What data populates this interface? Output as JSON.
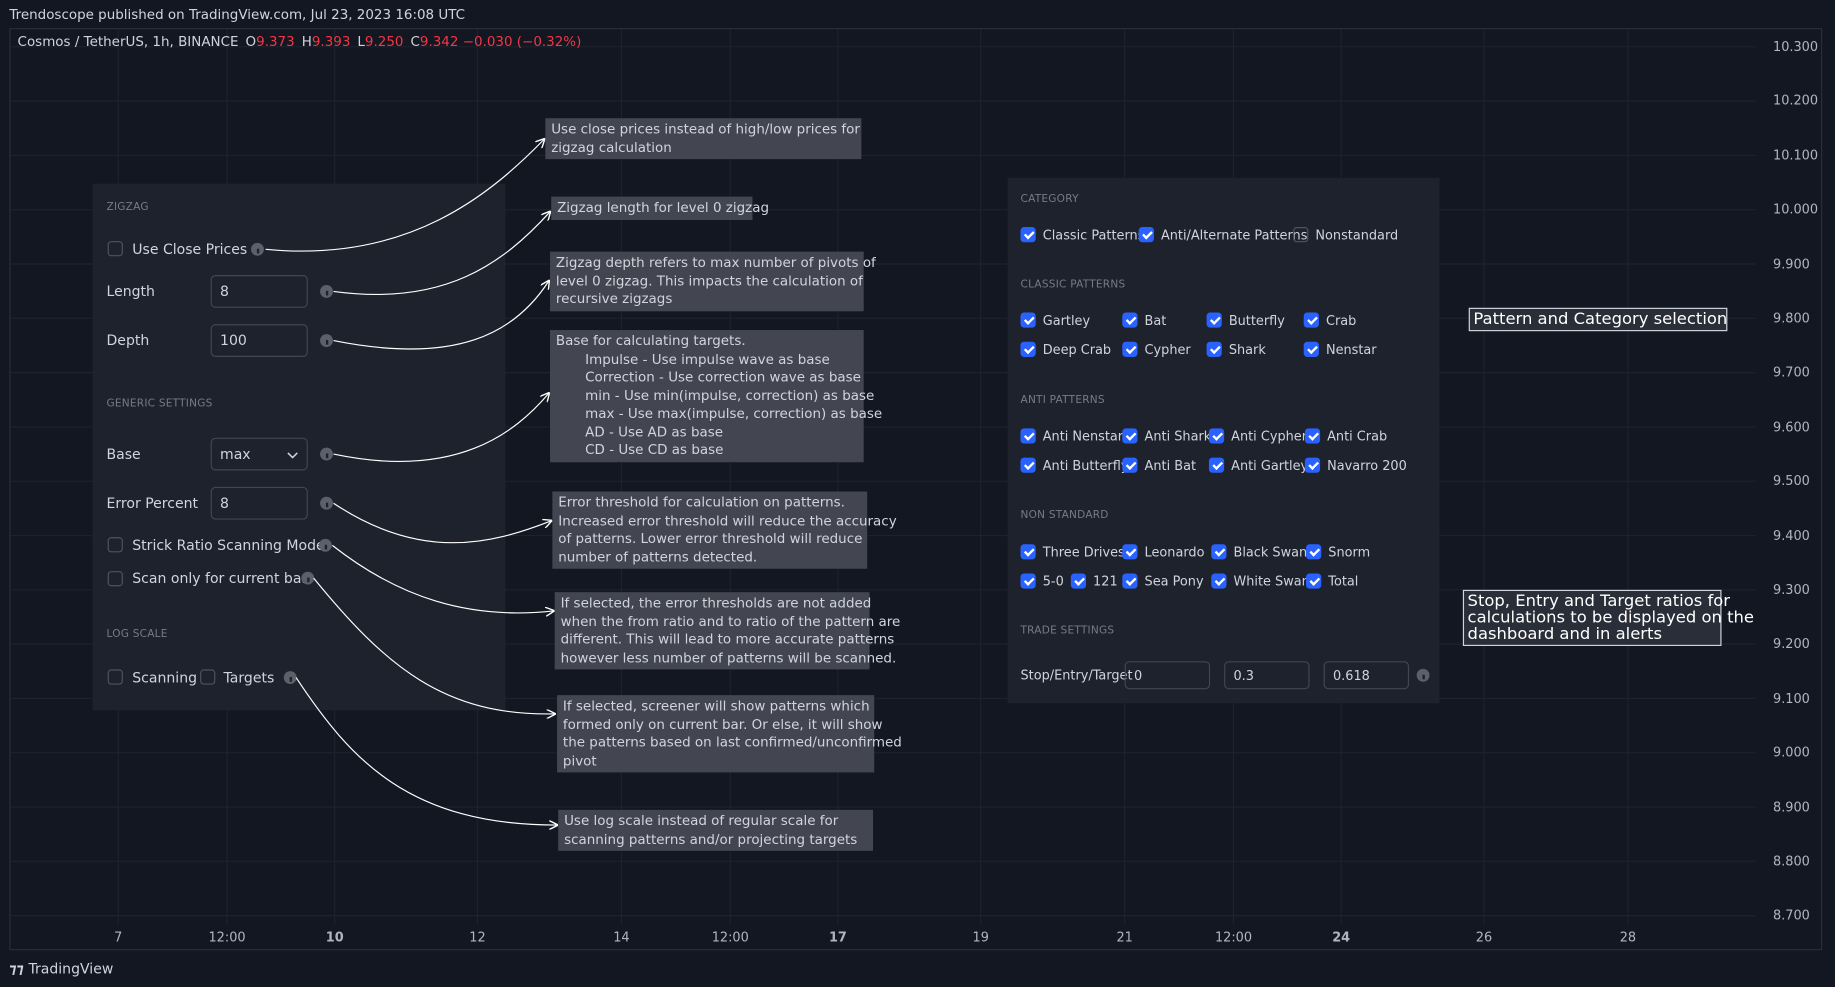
{
  "header": {
    "published": "Trendoscope published on TradingView.com, Jul 23, 2023 16:08 UTC"
  },
  "legend": {
    "symbol": "Cosmos / TetherUS, 1h, BINANCE",
    "ohlc": [
      {
        "key": "O",
        "value": "9.373"
      },
      {
        "key": "H",
        "value": "9.393"
      },
      {
        "key": "L",
        "value": "9.250"
      },
      {
        "key": "C",
        "value": "9.342"
      }
    ],
    "change": "−0.030 (−0.32%)"
  },
  "price_axis": [
    "10.300",
    "10.200",
    "10.100",
    "10.000",
    "9.900",
    "9.800",
    "9.700",
    "9.600",
    "9.500",
    "9.400",
    "9.300",
    "9.200",
    "9.100",
    "9.000",
    "8.900",
    "8.800",
    "8.700"
  ],
  "time_axis": [
    {
      "label": "7",
      "bold": false
    },
    {
      "label": "12:00",
      "bold": false
    },
    {
      "label": "10",
      "bold": true
    },
    {
      "label": "12",
      "bold": false
    },
    {
      "label": "14",
      "bold": false
    },
    {
      "label": "12:00",
      "bold": false
    },
    {
      "label": "17",
      "bold": true
    },
    {
      "label": "19",
      "bold": false
    },
    {
      "label": "21",
      "bold": false
    },
    {
      "label": "12:00",
      "bold": false
    },
    {
      "label": "24",
      "bold": true
    },
    {
      "label": "26",
      "bold": false
    },
    {
      "label": "28",
      "bold": false
    }
  ],
  "footer": {
    "brand": "TradingView"
  },
  "left_panel": {
    "zigzag": {
      "title": "ZIGZAG",
      "use_close": {
        "label": "Use Close Prices",
        "checked": false
      },
      "length": {
        "label": "Length",
        "value": "8"
      },
      "depth": {
        "label": "Depth",
        "value": "100"
      }
    },
    "generic": {
      "title": "GENERIC SETTINGS",
      "base": {
        "label": "Base",
        "value": "max"
      },
      "error": {
        "label": "Error Percent",
        "value": "8"
      },
      "strict": {
        "label": "Strick Ratio Scanning Mode",
        "checked": false
      },
      "current_bar": {
        "label": "Scan only for current bar",
        "checked": false
      }
    },
    "log_scale": {
      "title": "LOG SCALE",
      "scanning": {
        "label": "Scanning",
        "checked": false
      },
      "targets": {
        "label": "Targets",
        "checked": false
      }
    }
  },
  "tooltips": [
    {
      "lines": [
        "Use close prices instead of high/low prices for",
        "zigzag calculation"
      ]
    },
    {
      "lines": [
        "Zigzag length for level 0 zigzag"
      ]
    },
    {
      "lines": [
        "Zigzag depth refers to max number of pivots of",
        "level 0 zigzag. This impacts the calculation of",
        "recursive zigzags"
      ]
    },
    {
      "lines": [
        "Base for calculating targets.",
        "Impulse - Use impulse wave as base",
        "Correction - Use correction wave as base",
        "min - Use min(impulse, correction) as base",
        "max - Use max(impulse, correction) as base",
        "AD - Use AD as base",
        "CD - Use CD as base"
      ]
    },
    {
      "lines": [
        "Error threshold for calculation on patterns.",
        "Increased error threshold will reduce the accuracy",
        "of patterns. Lower error threshold will reduce",
        "number of patterns detected."
      ]
    },
    {
      "lines": [
        "If selected, the error thresholds are not added",
        "when the from ratio and to ratio of the pattern are",
        "different. This will lead to more accurate patterns",
        "however less number of patterns will be scanned."
      ]
    },
    {
      "lines": [
        "If selected, screener will show patterns which",
        "formed only on current bar. Or else, it will show",
        "the patterns based on last confirmed/unconfirmed",
        "pivot"
      ]
    },
    {
      "lines": [
        "Use log scale instead of regular scale for",
        "scanning patterns and/or projecting targets"
      ]
    }
  ],
  "right_panel": {
    "category": {
      "title": "CATEGORY",
      "items": [
        {
          "label": "Classic Patterns",
          "checked": true
        },
        {
          "label": "Anti/Alternate Patterns",
          "checked": true
        },
        {
          "label": "Nonstandard",
          "checked": false
        }
      ]
    },
    "classic": {
      "title": "CLASSIC PATTERNS",
      "rows": [
        [
          "Gartley",
          "Bat",
          "Butterfly",
          "Crab"
        ],
        [
          "Deep Crab",
          "Cypher",
          "Shark",
          "Nenstar"
        ]
      ]
    },
    "anti": {
      "title": "ANTI PATTERNS",
      "rows": [
        [
          "Anti Nenstar",
          "Anti Shark",
          "Anti Cypher",
          "Anti Crab"
        ],
        [
          "Anti Butterfly",
          "Anti Bat",
          "Anti Gartley",
          "Navarro 200"
        ]
      ]
    },
    "nonstandard": {
      "title": "NON STANDARD",
      "rows": [
        [
          "Three Drives",
          "Leonardo",
          "Black Swan",
          "Snorm"
        ],
        [
          "5-0",
          "121",
          "Sea Pony",
          "White Swan",
          "Total"
        ]
      ]
    },
    "trade": {
      "title": "TRADE SETTINGS",
      "label": "Stop/Entry/Target",
      "values": [
        "0",
        "0.3",
        "0.618"
      ]
    }
  },
  "annotations": [
    {
      "lines": [
        "Pattern and Category selection"
      ]
    },
    {
      "lines": [
        "Stop, Entry and Target ratios for",
        "calculations to be displayed on the",
        "dashboard and in alerts"
      ]
    }
  ]
}
